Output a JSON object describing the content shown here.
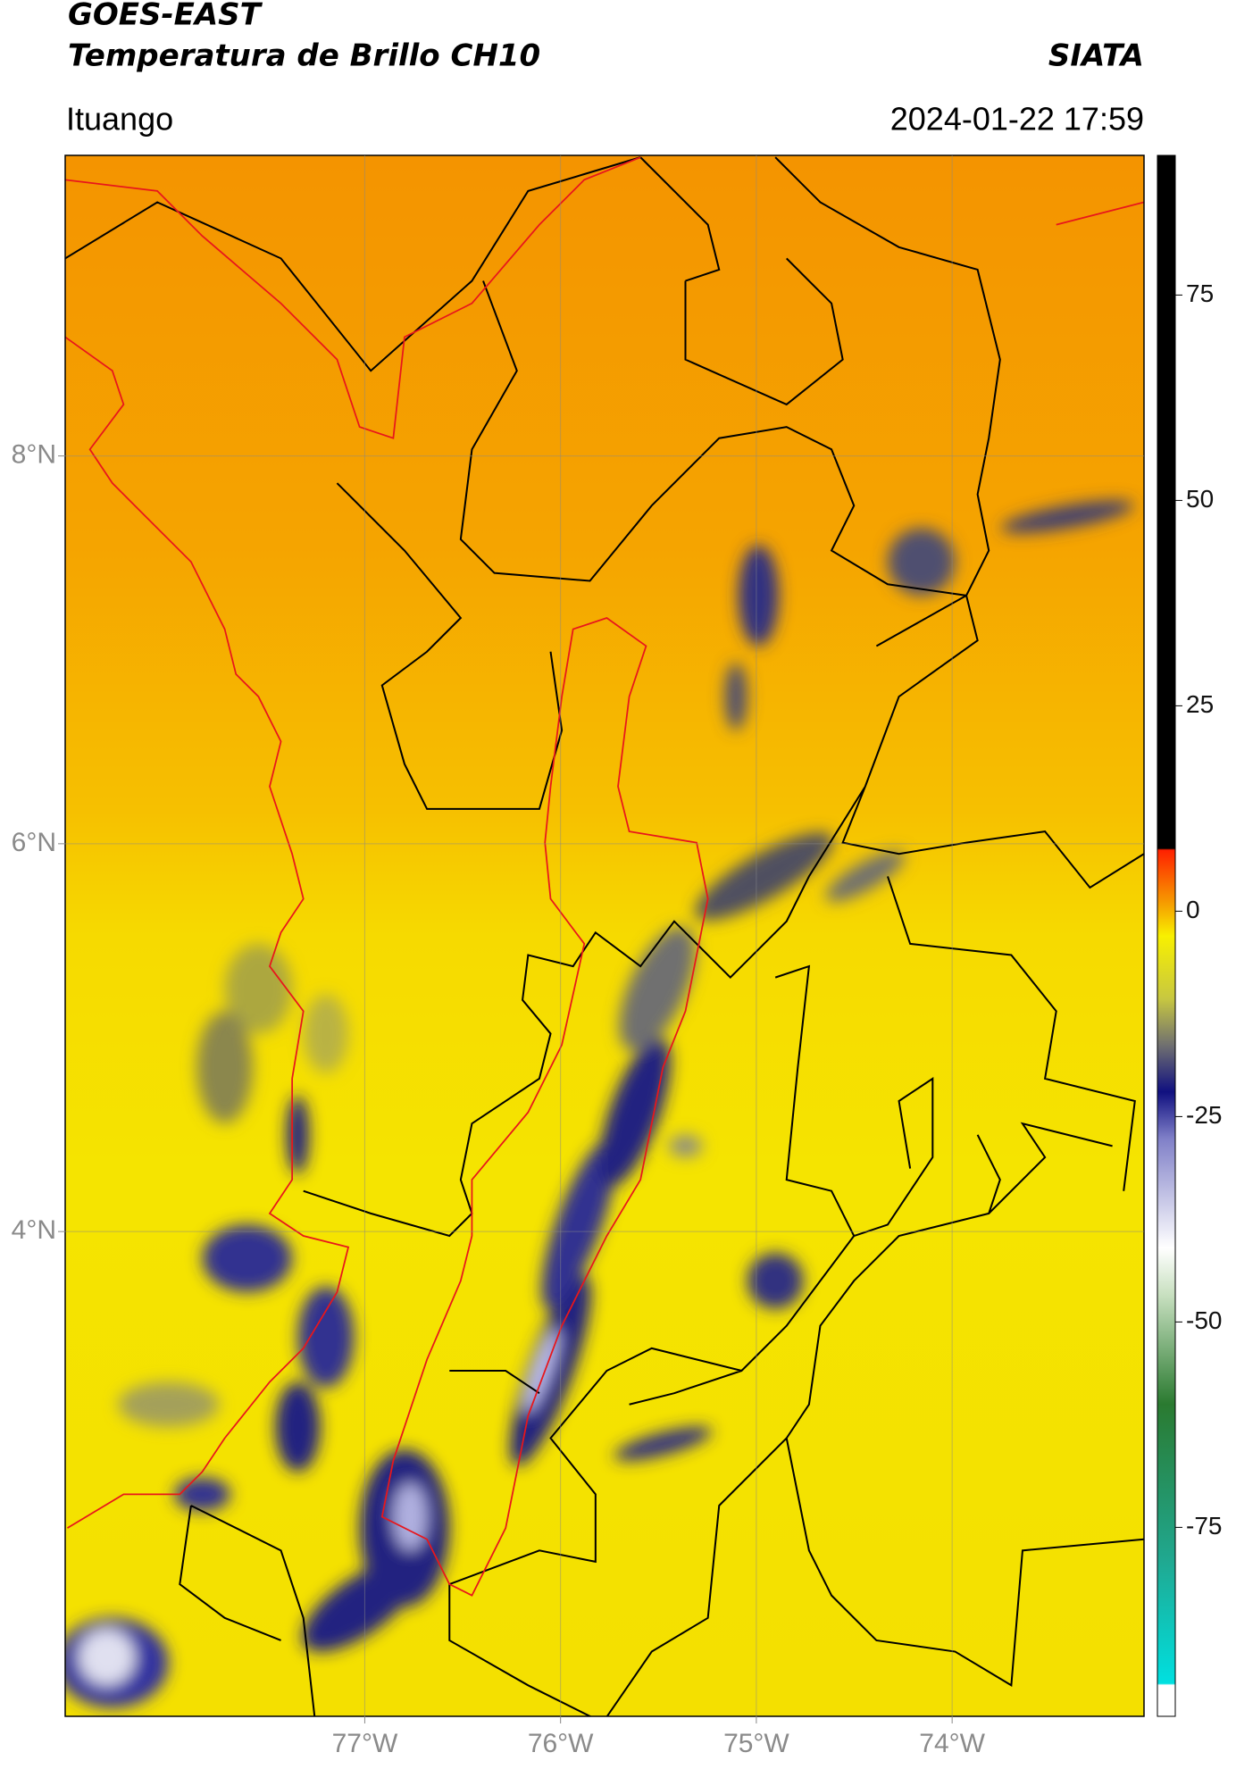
{
  "chart_data": {
    "type": "map",
    "title": "GOES-EAST",
    "subtitle": "Temperatura de Brillo CH10",
    "source": "SIATA",
    "location": "Ituango",
    "datetime": "2024-01-22 17:59",
    "xlim": [
      -78.53,
      -73.02
    ],
    "ylim": [
      1.5,
      9.55
    ],
    "xticks": [
      {
        "value": -77,
        "label": "77°W"
      },
      {
        "value": -76,
        "label": "76°W"
      },
      {
        "value": -75,
        "label": "75°W"
      },
      {
        "value": -74,
        "label": "74°W"
      }
    ],
    "yticks": [
      {
        "value": 4,
        "label": "4°N"
      },
      {
        "value": 6,
        "label": "6°N"
      },
      {
        "value": 8,
        "label": "8°N"
      }
    ],
    "grid": true,
    "colorbar": {
      "lim": [
        -98,
        92
      ],
      "ticks": [
        -75,
        -50,
        -25,
        0,
        25,
        50,
        75
      ]
    }
  }
}
